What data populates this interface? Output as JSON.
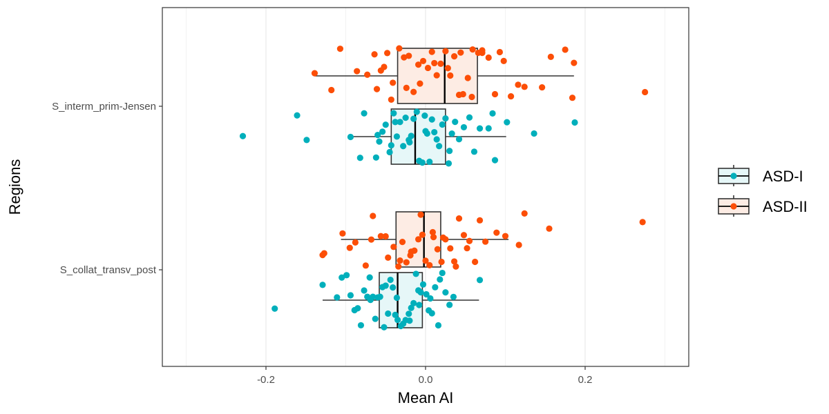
{
  "chart_data": {
    "type": "boxplot-jitter",
    "orientation": "horizontal",
    "xlabel": "Mean AI",
    "ylabel": "Regions",
    "xlim": [
      -0.33,
      0.33
    ],
    "x_ticks": [
      -0.2,
      0.0,
      0.2
    ],
    "x_tick_labels": [
      "-0.2",
      "0.0",
      "0.2"
    ],
    "categories": [
      "S_interm_prim-Jensen",
      "S_collat_transv_post"
    ],
    "grid": true,
    "legend_position": "right",
    "series": [
      {
        "name": "ASD-I",
        "color": "#00AFBB",
        "fill": "#E6F7F8",
        "boxes": [
          {
            "category": "S_interm_prim-Jensen",
            "whisker_low": -0.097,
            "q1": -0.043,
            "median": -0.013,
            "q3": 0.025,
            "whisker_high": 0.101
          },
          {
            "category": "S_collat_transv_post",
            "whisker_low": -0.129,
            "q1": -0.058,
            "median": -0.035,
            "q3": -0.004,
            "whisker_high": 0.067
          }
        ],
        "points": [
          {
            "category": "S_interm_prim-Jensen",
            "values": [
              -0.229,
              -0.149,
              -0.161,
              0.187,
              0.136,
              -0.094,
              -0.077,
              -0.062,
              -0.058,
              -0.054,
              -0.05,
              -0.045,
              -0.043,
              -0.04,
              -0.036,
              -0.032,
              -0.028,
              -0.025,
              -0.021,
              -0.018,
              -0.015,
              -0.011,
              -0.008,
              -0.004,
              -0.001,
              0.002,
              0.005,
              0.008,
              0.011,
              0.014,
              0.017,
              0.021,
              0.025,
              0.029,
              0.033,
              0.037,
              0.042,
              0.048,
              0.055,
              0.061,
              0.068,
              0.079,
              0.084,
              0.087,
              0.102,
              -0.082,
              -0.06,
              -0.038,
              -0.02,
              0.0,
              0.03
            ]
          },
          {
            "category": "S_collat_transv_post",
            "values": [
              -0.189,
              0.068,
              -0.129,
              -0.111,
              -0.105,
              -0.099,
              -0.094,
              -0.089,
              -0.085,
              -0.081,
              -0.077,
              -0.073,
              -0.069,
              -0.066,
              -0.063,
              -0.06,
              -0.057,
              -0.054,
              -0.05,
              -0.047,
              -0.044,
              -0.041,
              -0.038,
              -0.035,
              -0.031,
              -0.028,
              -0.025,
              -0.021,
              -0.018,
              -0.015,
              -0.012,
              -0.009,
              -0.006,
              -0.003,
              0.001,
              0.004,
              0.008,
              0.012,
              0.016,
              0.021,
              0.025,
              0.03,
              0.035,
              -0.07,
              -0.052,
              -0.036,
              -0.02,
              -0.008,
              0.006,
              0.018
            ]
          }
        ]
      },
      {
        "name": "ASD-II",
        "color": "#FC4E07",
        "fill": "#FDECE4",
        "boxes": [
          {
            "category": "S_interm_prim-Jensen",
            "whisker_low": -0.139,
            "q1": -0.035,
            "median": 0.024,
            "q3": 0.065,
            "whisker_high": 0.186
          },
          {
            "category": "S_collat_transv_post",
            "whisker_low": -0.106,
            "q1": -0.037,
            "median": -0.002,
            "q3": 0.019,
            "whisker_high": 0.104
          }
        ],
        "points": [
          {
            "category": "S_interm_prim-Jensen",
            "values": [
              0.275,
              0.184,
              0.186,
              0.175,
              0.157,
              0.146,
              0.124,
              0.116,
              0.107,
              0.098,
              0.087,
              0.079,
              0.071,
              0.066,
              0.059,
              0.053,
              0.047,
              0.042,
              0.036,
              0.031,
              0.025,
              0.019,
              0.014,
              0.008,
              0.003,
              -0.003,
              -0.009,
              -0.015,
              -0.021,
              -0.027,
              -0.033,
              -0.041,
              -0.048,
              -0.056,
              -0.064,
              -0.073,
              -0.086,
              -0.107,
              -0.118,
              -0.139,
              -0.061,
              -0.052,
              -0.043,
              -0.024,
              -0.007,
              0.011,
              0.028,
              0.044,
              0.058,
              0.071,
              0.093
            ]
          },
          {
            "category": "S_collat_transv_post",
            "values": [
              0.272,
              0.155,
              0.124,
              0.117,
              0.1,
              0.089,
              0.075,
              0.062,
              0.055,
              0.048,
              0.042,
              0.036,
              0.031,
              0.025,
              0.02,
              0.015,
              0.01,
              0.005,
              0.0,
              -0.004,
              -0.009,
              -0.014,
              -0.019,
              -0.024,
              -0.029,
              -0.034,
              -0.04,
              -0.047,
              -0.056,
              -0.066,
              -0.075,
              -0.088,
              -0.095,
              -0.104,
              -0.127,
              -0.129,
              -0.068,
              -0.05,
              -0.032,
              -0.018,
              -0.006,
              0.009,
              0.022,
              0.038,
              0.052,
              0.068
            ]
          }
        ]
      }
    ]
  }
}
